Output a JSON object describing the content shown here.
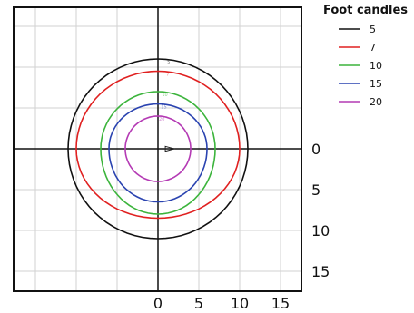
{
  "chart_data": {
    "type": "line",
    "title": "",
    "xlabel": "",
    "ylabel": "",
    "legend": {
      "title": "Foot candles",
      "placement": "top-right"
    },
    "grid": true,
    "xlim": [
      -18,
      18
    ],
    "ylim": [
      -18,
      18
    ],
    "x_ticks": [
      "0",
      "5",
      "10",
      "15"
    ],
    "y_ticks": [
      "0",
      "5",
      "10",
      "15"
    ],
    "series": [
      {
        "name": "5",
        "color": "#111111",
        "rx": 11,
        "ry_up": 11,
        "ry_down": 11
      },
      {
        "name": "7",
        "color": "#e02020",
        "rx": 10,
        "ry_up": 9.5,
        "ry_down": 8.5
      },
      {
        "name": "10",
        "color": "#3cb43c",
        "rx": 7,
        "ry_up": 7,
        "ry_down": 8
      },
      {
        "name": "15",
        "color": "#2a43b0",
        "rx": 6,
        "ry_up": 5.5,
        "ry_down": 6.5
      },
      {
        "name": "20",
        "color": "#b43ab4",
        "rx": 4,
        "ry_up": 4,
        "ry_down": 4
      }
    ]
  }
}
